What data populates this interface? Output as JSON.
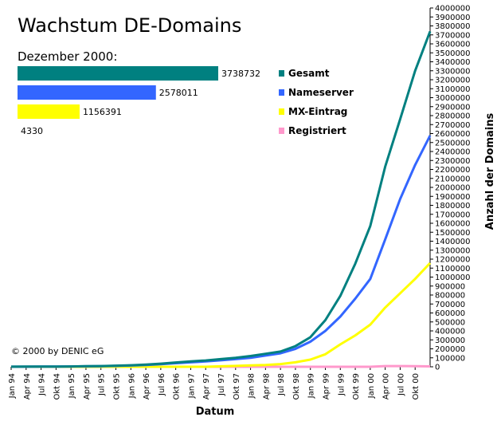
{
  "chart_data": {
    "type": "line",
    "title": "Wachstum DE-Domains",
    "subtitle": "Dezember 2000:",
    "xlabel": "Datum",
    "ylabel": "Anzahl der Domains",
    "copyright": "© 2000 by DENIC eG",
    "ylim": [
      0,
      4000000
    ],
    "y_ticks": [
      "0",
      "100000",
      "200000",
      "300000",
      "400000",
      "500000",
      "600000",
      "700000",
      "800000",
      "900000",
      "1000000",
      "1100000",
      "1200000",
      "1300000",
      "1400000",
      "1500000",
      "1600000",
      "1700000",
      "1800000",
      "1900000",
      "2000000",
      "2100000",
      "2200000",
      "2300000",
      "2400000",
      "2500000",
      "2600000",
      "2700000",
      "2800000",
      "2900000",
      "3000000",
      "3100000",
      "3200000",
      "3300000",
      "3400000",
      "3500000",
      "3600000",
      "3700000",
      "3800000",
      "3900000",
      "4000000"
    ],
    "x_ticks": [
      "Jan 94",
      "Apr 94",
      "Jul 94",
      "Okt 94",
      "Jan 95",
      "Apr 95",
      "Jul 95",
      "Okt 95",
      "Jan 96",
      "Apr 96",
      "Jul 96",
      "Okt 96",
      "Jan 97",
      "Apr 97",
      "Jul 97",
      "Okt 97",
      "Jan 98",
      "Apr 98",
      "Jul 98",
      "Okt 98",
      "Jan 99",
      "Apr 99",
      "Jul 99",
      "Okt 99",
      "Jan 00",
      "Apr 00",
      "Jul 00",
      "Okt 00"
    ],
    "x": [
      "Jan 94",
      "Apr 94",
      "Jul 94",
      "Okt 94",
      "Jan 95",
      "Apr 95",
      "Jul 95",
      "Okt 95",
      "Jan 96",
      "Apr 96",
      "Jul 96",
      "Okt 96",
      "Jan 97",
      "Apr 97",
      "Jul 97",
      "Okt 97",
      "Jan 98",
      "Apr 98",
      "Jul 98",
      "Okt 98",
      "Jan 99",
      "Apr 99",
      "Jul 99",
      "Okt 99",
      "Jan 00",
      "Apr 00",
      "Jul 00",
      "Okt 00",
      "Dez 00"
    ],
    "series": [
      {
        "name": "Gesamt",
        "color": "#008080",
        "values": [
          1000,
          1500,
          2000,
          3000,
          4000,
          6000,
          8000,
          12000,
          17000,
          25000,
          35000,
          48000,
          60000,
          70000,
          85000,
          100000,
          120000,
          145000,
          170000,
          230000,
          330000,
          520000,
          790000,
          1150000,
          1570000,
          2230000,
          2760000,
          3300000,
          3738732
        ]
      },
      {
        "name": "Nameserver",
        "color": "#3366FF",
        "values": [
          800,
          1200,
          1600,
          2500,
          3200,
          5000,
          7000,
          10000,
          14000,
          20000,
          29000,
          40000,
          50000,
          60000,
          72000,
          85000,
          100000,
          125000,
          150000,
          200000,
          280000,
          400000,
          560000,
          760000,
          980000,
          1420000,
          1870000,
          2250000,
          2578011
        ]
      },
      {
        "name": "MX-Eintrag",
        "color": "#FFFF00",
        "values": [
          0,
          0,
          0,
          0,
          0,
          0,
          0,
          0,
          0,
          0,
          0,
          0,
          0,
          0,
          5000,
          10000,
          15000,
          20000,
          30000,
          50000,
          80000,
          140000,
          250000,
          350000,
          470000,
          660000,
          820000,
          980000,
          1156391
        ]
      },
      {
        "name": "Registriert",
        "color": "#FF99CC",
        "values": [
          0,
          0,
          0,
          0,
          0,
          0,
          0,
          0,
          0,
          0,
          0,
          0,
          0,
          0,
          0,
          0,
          0,
          0,
          0,
          0,
          0,
          0,
          0,
          0,
          0,
          8000,
          8000,
          6000,
          4330
        ]
      }
    ],
    "dec2000": [
      {
        "name": "Gesamt",
        "value": 3738732,
        "label": "3738732",
        "color": "#008080"
      },
      {
        "name": "Nameserver",
        "value": 2578011,
        "label": "2578011",
        "color": "#3366FF"
      },
      {
        "name": "MX-Eintrag",
        "value": 1156391,
        "label": "1156391",
        "color": "#FFFF00"
      },
      {
        "name": "Registriert",
        "value": 4330,
        "label": "4330",
        "color": "#FF99CC"
      }
    ]
  }
}
